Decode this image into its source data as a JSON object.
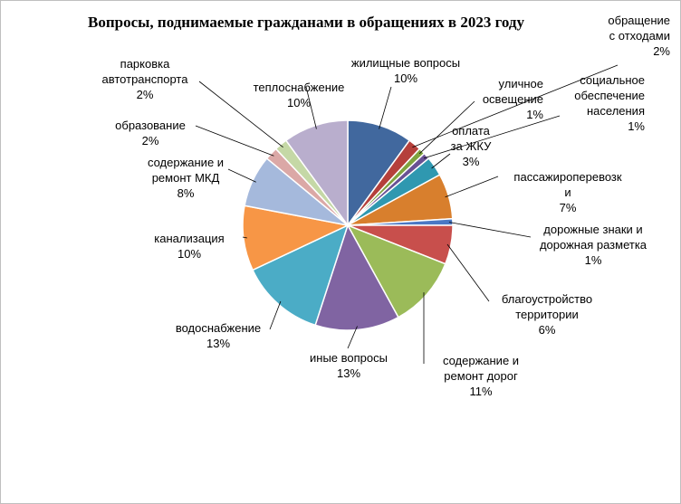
{
  "chart_data": {
    "type": "pie",
    "title": "Вопросы, поднимаемые гражданами в обращениях в 2023 году",
    "slices": [
      {
        "label": "жилищные вопросы",
        "value": 10,
        "pct": "10%",
        "color": "#41689e"
      },
      {
        "label": "обращение\nс отходами",
        "value": 2,
        "pct": "2%",
        "color": "#b5403b"
      },
      {
        "label": "уличное\nосвещение",
        "value": 1,
        "pct": "1%",
        "color": "#7fa33f"
      },
      {
        "label": "социальное\nобеспечение\nнаселения",
        "value": 1,
        "pct": "1%",
        "color": "#695194"
      },
      {
        "label": "оплата\nза ЖКУ",
        "value": 3,
        "pct": "3%",
        "color": "#2f98b0"
      },
      {
        "label": "пассажироперевозк\nи",
        "value": 7,
        "pct": "7%",
        "color": "#d87f2d"
      },
      {
        "label": "дорожные знаки и\nдорожная разметка",
        "value": 1,
        "pct": "1%",
        "color": "#4a78c4"
      },
      {
        "label": "благоустройство\nтерритории",
        "value": 6,
        "pct": "6%",
        "color": "#c84f4c"
      },
      {
        "label": "содержание и\nремонт дорог",
        "value": 11,
        "pct": "11%",
        "color": "#9bbb59"
      },
      {
        "label": "иные вопросы",
        "value": 13,
        "pct": "13%",
        "color": "#8064a2"
      },
      {
        "label": "водоснабжение",
        "value": 13,
        "pct": "13%",
        "color": "#4bacc6"
      },
      {
        "label": "канализация",
        "value": 10,
        "pct": "10%",
        "color": "#f79646"
      },
      {
        "label": "содержание и\nремонт МКД",
        "value": 8,
        "pct": "8%",
        "color": "#a5b9dc"
      },
      {
        "label": "образование",
        "value": 2,
        "pct": "2%",
        "color": "#dba8a6"
      },
      {
        "label": "парковка\nавтотранспорта",
        "value": 2,
        "pct": "2%",
        "color": "#c5d8a6"
      },
      {
        "label": "теплоснабжение",
        "value": 10,
        "pct": "10%",
        "color": "#b9aecd"
      }
    ]
  }
}
